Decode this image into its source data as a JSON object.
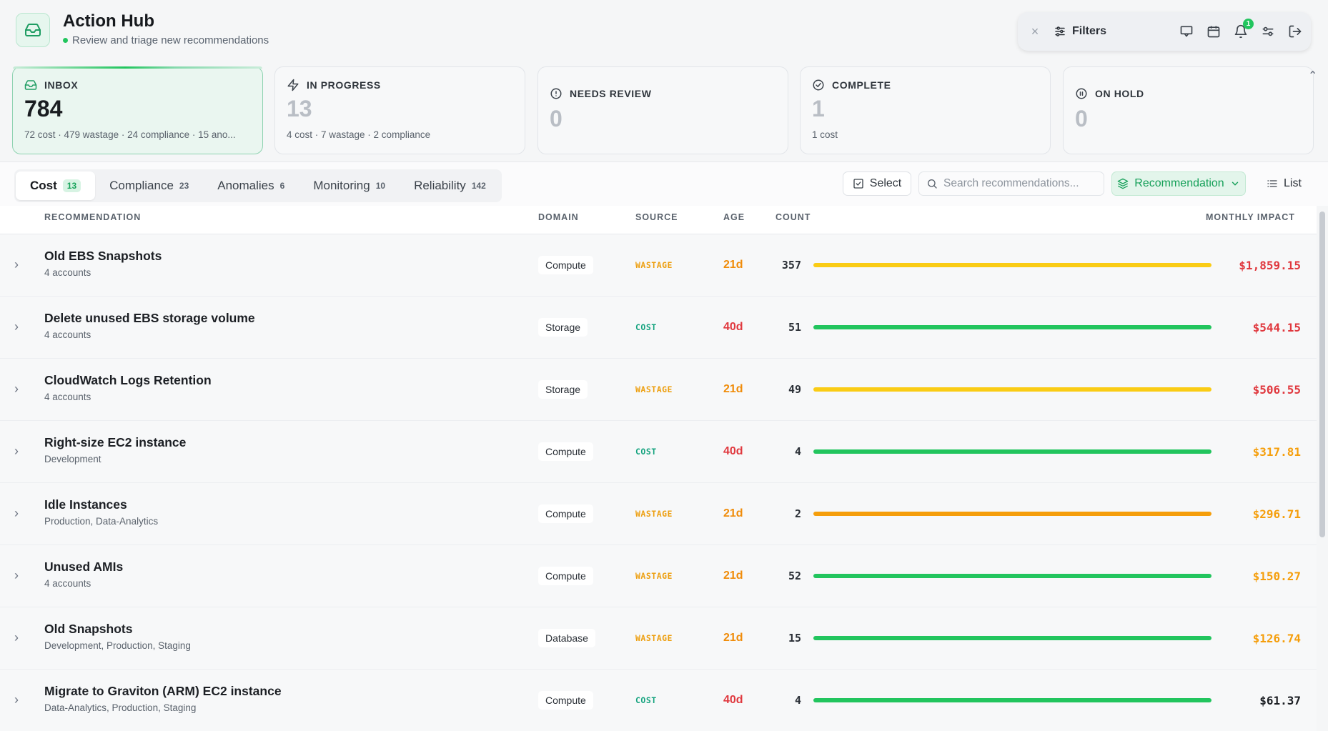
{
  "header": {
    "title": "Action Hub",
    "subtitle": "Review and triage new recommendations",
    "app_icon": "inbox-icon"
  },
  "toolbar": {
    "close_icon": "close-icon",
    "filters_label": "Filters",
    "notification_count": "1",
    "icons": [
      "chat-icon",
      "calendar-icon",
      "bell-icon",
      "settings-sliders-icon",
      "logout-icon"
    ]
  },
  "status_cards": [
    {
      "label": "INBOX",
      "count": "784",
      "sub": "72 cost · 479 wastage · 24 compliance · 15 ano...",
      "icon": "inbox-icon",
      "active": true
    },
    {
      "label": "IN PROGRESS",
      "count": "13",
      "sub": "4 cost · 7 wastage · 2 compliance",
      "icon": "bolt-icon",
      "active": false
    },
    {
      "label": "NEEDS REVIEW",
      "count": "0",
      "sub": "",
      "icon": "alert-circle-icon",
      "active": false
    },
    {
      "label": "COMPLETE",
      "count": "1",
      "sub": "1 cost",
      "icon": "check-circle-icon",
      "active": false
    },
    {
      "label": "ON HOLD",
      "count": "0",
      "sub": "",
      "icon": "pause-circle-icon",
      "active": false
    }
  ],
  "tabs": [
    {
      "label": "Cost",
      "count": "13",
      "active": true
    },
    {
      "label": "Compliance",
      "count": "23",
      "active": false
    },
    {
      "label": "Anomalies",
      "count": "6",
      "active": false
    },
    {
      "label": "Monitoring",
      "count": "10",
      "active": false
    },
    {
      "label": "Reliability",
      "count": "142",
      "active": false
    }
  ],
  "controls": {
    "select_label": "Select",
    "search_placeholder": "Search recommendations...",
    "group_label": "Recommendation",
    "view_label": "List"
  },
  "table": {
    "columns": {
      "recommendation": "RECOMMENDATION",
      "domain": "DOMAIN",
      "source": "SOURCE",
      "age": "AGE",
      "count": "COUNT",
      "impact": "MONTHLY IMPACT"
    },
    "rows": [
      {
        "title": "Old EBS Snapshots",
        "sub": "4 accounts",
        "domain": "Compute",
        "source": "WASTAGE",
        "age": "21d",
        "count": "357",
        "bar_color": "#facc15",
        "impact": "$1,859.15",
        "impact_color": "#e0383e",
        "age_color": "amber"
      },
      {
        "title": "Delete unused EBS storage volume",
        "sub": "4 accounts",
        "domain": "Storage",
        "source": "COST",
        "age": "40d",
        "count": "51",
        "bar_color": "#22c55e",
        "impact": "$544.15",
        "impact_color": "#e0383e",
        "age_color": "red"
      },
      {
        "title": "CloudWatch Logs Retention",
        "sub": "4 accounts",
        "domain": "Storage",
        "source": "WASTAGE",
        "age": "21d",
        "count": "49",
        "bar_color": "#facc15",
        "impact": "$506.55",
        "impact_color": "#e0383e",
        "age_color": "amber"
      },
      {
        "title": "Right-size EC2 instance",
        "sub": "Development",
        "domain": "Compute",
        "source": "COST",
        "age": "40d",
        "count": "4",
        "bar_color": "#22c55e",
        "impact": "$317.81",
        "impact_color": "#f59e0b",
        "age_color": "red"
      },
      {
        "title": "Idle Instances",
        "sub": "Production, Data-Analytics",
        "domain": "Compute",
        "source": "WASTAGE",
        "age": "21d",
        "count": "2",
        "bar_color": "#f59e0b",
        "impact": "$296.71",
        "impact_color": "#f59e0b",
        "age_color": "amber"
      },
      {
        "title": "Unused AMIs",
        "sub": "4 accounts",
        "domain": "Compute",
        "source": "WASTAGE",
        "age": "21d",
        "count": "52",
        "bar_color": "#22c55e",
        "impact": "$150.27",
        "impact_color": "#f59e0b",
        "age_color": "amber"
      },
      {
        "title": "Old Snapshots",
        "sub": "Development, Production, Staging",
        "domain": "Database",
        "source": "WASTAGE",
        "age": "21d",
        "count": "15",
        "bar_color": "#22c55e",
        "impact": "$126.74",
        "impact_color": "#f59e0b",
        "age_color": "amber"
      },
      {
        "title": "Migrate to Graviton (ARM) EC2 instance",
        "sub": "Data-Analytics, Production, Staging",
        "domain": "Compute",
        "source": "COST",
        "age": "40d",
        "count": "4",
        "bar_color": "#22c55e",
        "impact": "$61.37",
        "impact_color": "#1c1f24",
        "age_color": "red"
      }
    ]
  }
}
